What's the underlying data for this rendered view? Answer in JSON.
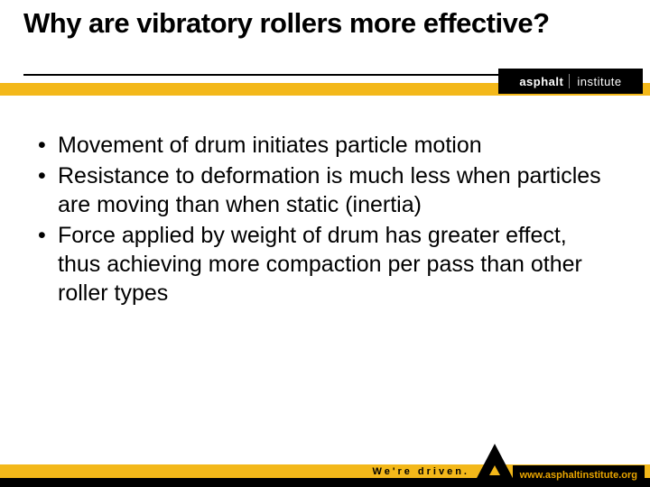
{
  "colors": {
    "accent_yellow": "#f3b81a",
    "black": "#000000",
    "white": "#ffffff",
    "url_text": "#e9a500"
  },
  "typography": {
    "title_fontsize": 31,
    "title_weight": 900,
    "body_fontsize": 25,
    "body_lineheight": 1.28,
    "tagline_fontsize": 11,
    "tagline_letterspacing": 3
  },
  "header": {
    "title": "Why are vibratory rollers more effective?",
    "logo_bold": "asphalt",
    "logo_light": "institute"
  },
  "bullets": [
    "Movement of drum initiates particle motion",
    "Resistance to deformation is much less when particles are moving than when static (inertia)",
    "Force applied by weight of drum has greater effect, thus achieving more compaction per pass than other roller types"
  ],
  "footer": {
    "tagline": "We're driven.",
    "url": "www.asphaltinstitute.org"
  }
}
